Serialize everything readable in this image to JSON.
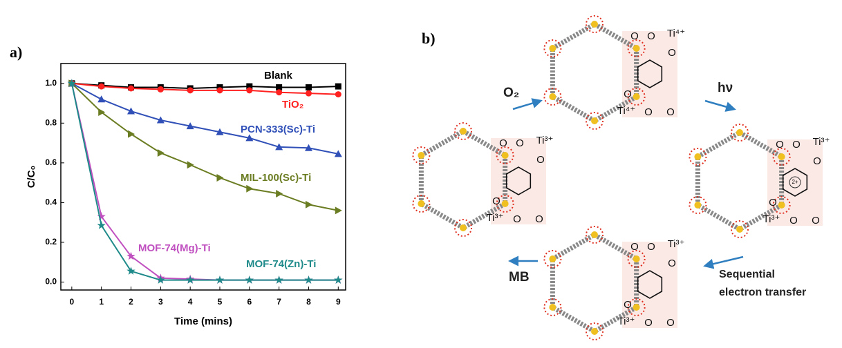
{
  "chart_data": {
    "type": "line",
    "panel": "a)",
    "xlabel": "Time (mins)",
    "ylabel": "C/C₀",
    "x": [
      0,
      1,
      2,
      3,
      4,
      5,
      6,
      7,
      8,
      9
    ],
    "xlim": [
      -0.37,
      9.25
    ],
    "xticks": [
      0,
      1,
      2,
      3,
      4,
      5,
      6,
      7,
      8,
      9
    ],
    "ylim": [
      -0.04,
      1.1
    ],
    "yticks": [
      {
        "value": 0,
        "label": "0.0"
      },
      0.2,
      0.4,
      0.6,
      0.8,
      {
        "value": 1,
        "label": "1.0"
      }
    ],
    "series": [
      {
        "name": "Blank",
        "color": "#000000",
        "marker": "square",
        "values": [
          1.0,
          0.99,
          0.98,
          0.98,
          0.975,
          0.98,
          0.985,
          0.98,
          0.98,
          0.985
        ]
      },
      {
        "name": "TiO₂",
        "color": "#ff2020",
        "marker": "circle",
        "values": [
          1.0,
          0.985,
          0.975,
          0.97,
          0.965,
          0.965,
          0.965,
          0.955,
          0.95,
          0.945
        ]
      },
      {
        "name": "PCN-333(Sc)-Ti",
        "color": "#3050b8",
        "marker": "triangle-up",
        "values": [
          1.0,
          0.92,
          0.86,
          0.815,
          0.785,
          0.755,
          0.725,
          0.68,
          0.675,
          0.645
        ]
      },
      {
        "name": "MIL-100(Sc)-Ti",
        "color": "#6b7d22",
        "marker": "triangle-right",
        "values": [
          1.0,
          0.855,
          0.745,
          0.65,
          0.59,
          0.525,
          0.47,
          0.445,
          0.39,
          0.36
        ]
      },
      {
        "name": "MOF-74(Mg)-Ti",
        "color": "#c050c0",
        "marker": "star",
        "values": [
          1.0,
          0.33,
          0.13,
          0.02,
          0.015,
          0.01,
          0.01,
          0.01,
          0.01,
          0.01
        ]
      },
      {
        "name": "MOF-74(Zn)-Ti",
        "color": "#1f8a8a",
        "marker": "star",
        "values": [
          1.0,
          0.285,
          0.055,
          0.01,
          0.01,
          0.01,
          0.01,
          0.01,
          0.01,
          0.01
        ]
      }
    ]
  },
  "diagram": {
    "panel": "b)",
    "nodes": [
      {
        "ti": [
          "Ti⁴⁺",
          "Ti⁴⁺"
        ],
        "o": [
          "O",
          "O",
          "O",
          "O",
          "O",
          "O"
        ]
      },
      {
        "ti": [
          "Ti³⁺",
          "Ti³⁺"
        ],
        "o": [
          "O",
          "O",
          "O",
          "O",
          "O",
          "O"
        ]
      },
      {
        "ti": [
          "Ti³⁺",
          "Ti³⁺"
        ],
        "o": [
          "O",
          "O",
          "O",
          "O",
          "O",
          "O"
        ],
        "charge": "2+"
      },
      {
        "ti": [
          "Ti³⁺",
          "Ti³⁺"
        ],
        "o": [
          "O",
          "O",
          "O",
          "O",
          "O",
          "O"
        ]
      }
    ],
    "arrows": [
      {
        "label": [
          "O₂"
        ]
      },
      {
        "label": [
          "hν"
        ]
      },
      {
        "label": [
          "Sequential",
          "electron transfer"
        ]
      },
      {
        "label": [
          "MB"
        ]
      }
    ]
  }
}
